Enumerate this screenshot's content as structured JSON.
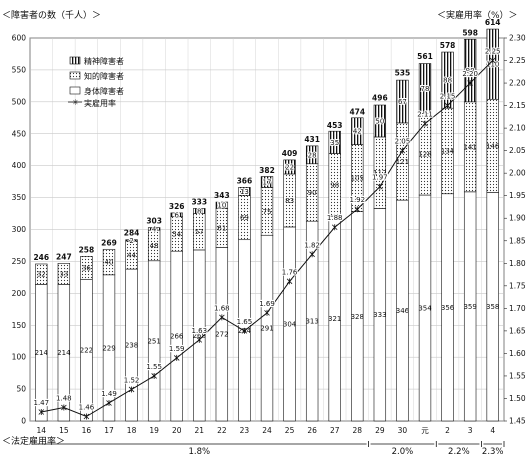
{
  "chart_data": {
    "type": "bar",
    "stacked": true,
    "y_left_title": "＜障害者の数（千人）＞",
    "y_right_title": "＜実雇用率（%）＞",
    "legal_rate_title": "＜法定雇用率＞",
    "ylim_left": [
      0,
      600
    ],
    "ylim_right": [
      1.45,
      2.3
    ],
    "left_ticks": [
      0,
      50,
      100,
      150,
      200,
      250,
      300,
      350,
      400,
      450,
      500,
      550,
      600
    ],
    "right_ticks": [
      "1.45",
      "1.50",
      "1.55",
      "1.60",
      "1.65",
      "1.70",
      "1.75",
      "1.80",
      "1.85",
      "1.90",
      "1.95",
      "2.00",
      "2.05",
      "2.10",
      "2.15",
      "2.20",
      "2.25",
      "2.30"
    ],
    "categories": [
      "14",
      "15",
      "16",
      "17",
      "18",
      "19",
      "20",
      "21",
      "22",
      "23",
      "24",
      "25",
      "26",
      "27",
      "28",
      "29",
      "30",
      "元",
      "2",
      "3",
      "4"
    ],
    "series": [
      {
        "name": "身体障害者",
        "values": [
          214,
          214,
          222,
          229,
          238,
          251,
          266,
          268,
          272,
          284,
          291,
          304,
          313,
          321,
          328,
          333,
          346,
          354,
          356,
          359,
          358
        ]
      },
      {
        "name": "知的障害者",
        "values": [
          32,
          33,
          36,
          40,
          44,
          48,
          54,
          57,
          61,
          69,
          75,
          83,
          90,
          98,
          105,
          112,
          121,
          128,
          134,
          141,
          146
        ]
      },
      {
        "name": "精神障害者",
        "values": [
          0,
          0,
          0,
          0,
          2,
          4,
          6,
          8,
          10,
          13,
          17,
          22,
          28,
          35,
          42,
          50,
          67,
          78,
          88,
          98,
          110
        ]
      }
    ],
    "totals": [
      246,
      247,
      258,
      269,
      284,
      303,
      326,
      333,
      343,
      366,
      382,
      409,
      431,
      453,
      474,
      496,
      535,
      561,
      578,
      598,
      614
    ],
    "rate_series": {
      "name": "実雇用率",
      "values": [
        1.47,
        1.48,
        1.46,
        1.49,
        1.52,
        1.55,
        1.59,
        1.63,
        1.68,
        1.65,
        1.69,
        1.76,
        1.82,
        1.88,
        1.92,
        1.97,
        2.05,
        2.11,
        2.15,
        2.2,
        2.25
      ]
    },
    "legal_rates": [
      {
        "label": "1.8%",
        "from": 0,
        "to": 15
      },
      {
        "label": "2.0%",
        "from": 15,
        "to": 18
      },
      {
        "label": "2.2%",
        "from": 18,
        "to": 20
      },
      {
        "label": "2.3%",
        "from": 20,
        "to": 21
      }
    ]
  }
}
